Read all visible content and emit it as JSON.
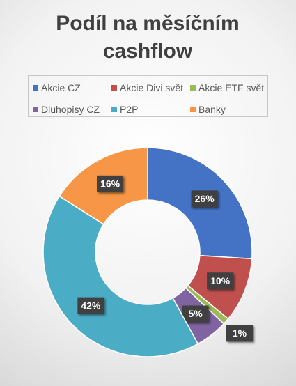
{
  "chart_data": {
    "type": "doughnut",
    "title": "Podíl na měsíčním cashflow",
    "categories": [
      "Akcie CZ",
      "Akcie Divi svět",
      "Akcie ETF svět",
      "Dluhopisy CZ",
      "P2P",
      "Banky"
    ],
    "values": [
      26,
      10,
      1,
      5,
      42,
      16
    ],
    "value_labels": [
      "26%",
      "10%",
      "1%",
      "5%",
      "42%",
      "16%"
    ],
    "colors": [
      "#4472c4",
      "#c0504d",
      "#9bbb59",
      "#8064a2",
      "#4bacc6",
      "#f79646"
    ]
  }
}
